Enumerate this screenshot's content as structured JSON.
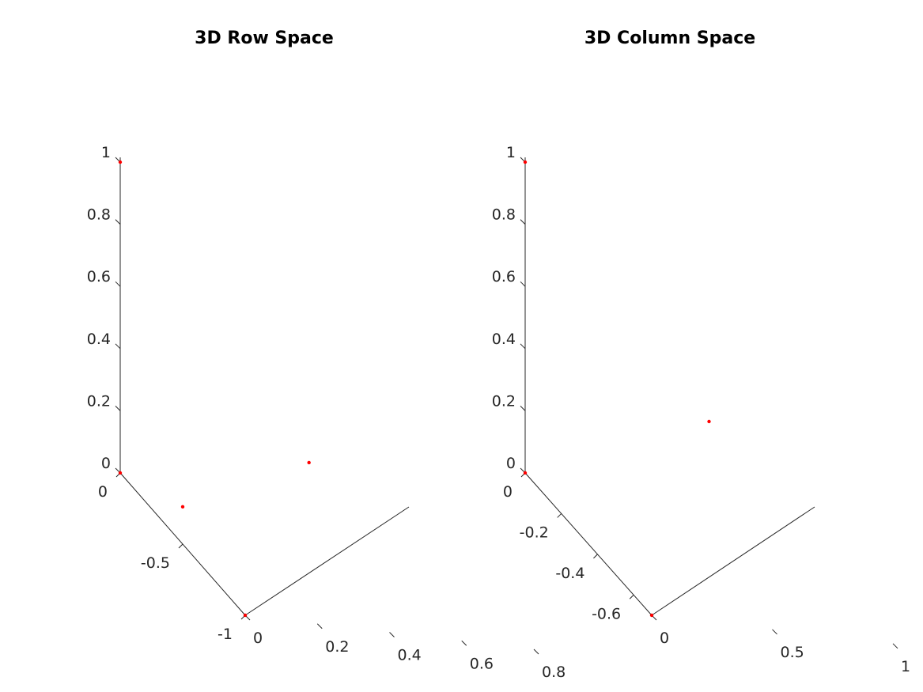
{
  "chart_data": [
    {
      "type": "scatter3d",
      "title": "3D Row Space",
      "xlabel": "",
      "ylabel": "",
      "zlabel": "",
      "grid": false,
      "marker_color": "#ff0000",
      "xlim": [
        -1,
        0
      ],
      "ylim": [
        0,
        0.8
      ],
      "zlim": [
        0,
        1
      ],
      "x_ticks": [
        {
          "value": -1,
          "label": "-1"
        },
        {
          "value": -0.5,
          "label": "-0.5"
        },
        {
          "value": 0,
          "label": "0"
        }
      ],
      "y_ticks": [
        {
          "value": 0,
          "label": "0"
        },
        {
          "value": 0.2,
          "label": "0.2"
        },
        {
          "value": 0.4,
          "label": "0.4"
        },
        {
          "value": 0.6,
          "label": "0.6"
        },
        {
          "value": 0.8,
          "label": "0.8"
        }
      ],
      "z_ticks": [
        {
          "value": 0,
          "label": "0"
        },
        {
          "value": 0.2,
          "label": "0.2"
        },
        {
          "value": 0.4,
          "label": "0.4"
        },
        {
          "value": 0.6,
          "label": "0.6"
        },
        {
          "value": 0.8,
          "label": "0.8"
        },
        {
          "value": 1,
          "label": "1"
        }
      ],
      "points": [
        {
          "x": 0,
          "y": 0,
          "z": 1
        },
        {
          "x": 0,
          "y": 0,
          "z": 0
        },
        {
          "x": -1,
          "y": 0,
          "z": 0
        },
        {
          "x": -0.5,
          "y": 0,
          "z": 0.12
        },
        {
          "x": -0.5,
          "y": 0.35,
          "z": 0.31
        }
      ]
    },
    {
      "type": "scatter3d",
      "title": "3D Column Space",
      "xlabel": "",
      "ylabel": "",
      "zlabel": "",
      "grid": false,
      "marker_color": "#ff0000",
      "xlim": [
        -0.7,
        0
      ],
      "ylim": [
        0,
        1.2
      ],
      "zlim": [
        0,
        1
      ],
      "x_ticks": [
        {
          "value": -0.6,
          "label": "-0.6"
        },
        {
          "value": -0.4,
          "label": "-0.4"
        },
        {
          "value": -0.2,
          "label": "-0.2"
        },
        {
          "value": 0,
          "label": "0"
        }
      ],
      "y_ticks": [
        {
          "value": 0,
          "label": "0"
        },
        {
          "value": 0.5,
          "label": "0.5"
        },
        {
          "value": 1,
          "label": "1"
        }
      ],
      "z_ticks": [
        {
          "value": 0,
          "label": "0"
        },
        {
          "value": 0.2,
          "label": "0.2"
        },
        {
          "value": 0.4,
          "label": "0.4"
        },
        {
          "value": 0.6,
          "label": "0.6"
        },
        {
          "value": 0.8,
          "label": "0.8"
        },
        {
          "value": 1,
          "label": "1"
        }
      ],
      "points": [
        {
          "x": 0,
          "y": 0,
          "z": 1
        },
        {
          "x": 0,
          "y": 0,
          "z": 0
        },
        {
          "x": -0.7,
          "y": 0,
          "z": 0
        },
        {
          "x": -0.35,
          "y": 0.5,
          "z": 0.44
        }
      ]
    }
  ]
}
